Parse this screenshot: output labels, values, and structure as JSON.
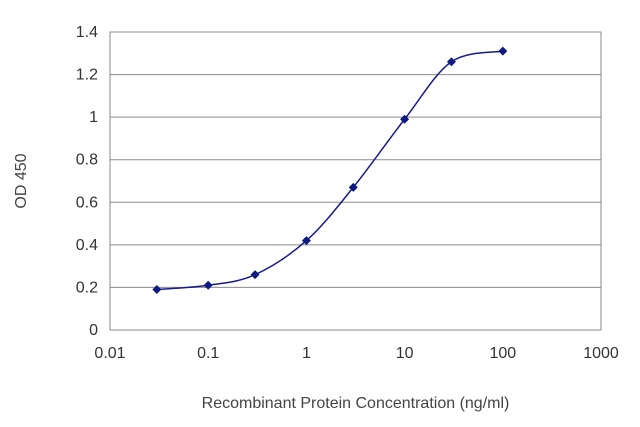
{
  "chart_data": {
    "type": "line",
    "title": "",
    "xlabel": "Recombinant Protein Concentration (ng/ml)",
    "ylabel": "OD 450",
    "x_scale": "log",
    "xlim": [
      0.01,
      1000
    ],
    "ylim": [
      0,
      1.4
    ],
    "x_ticks": [
      "0.01",
      "0.1",
      "1",
      "10",
      "100",
      "1000"
    ],
    "y_ticks": [
      "0",
      "0.2",
      "0.4",
      "0.6",
      "0.8",
      "1",
      "1.2",
      "1.4"
    ],
    "grid": "horizontal",
    "legend": "none",
    "series": [
      {
        "color": "#1a1a8c",
        "marker_color": "#0d1a80",
        "x": [
          0.03,
          0.1,
          0.3,
          1,
          3,
          10,
          30,
          100
        ],
        "y": [
          0.19,
          0.21,
          0.26,
          0.42,
          0.67,
          0.99,
          1.26,
          1.31
        ]
      }
    ]
  }
}
